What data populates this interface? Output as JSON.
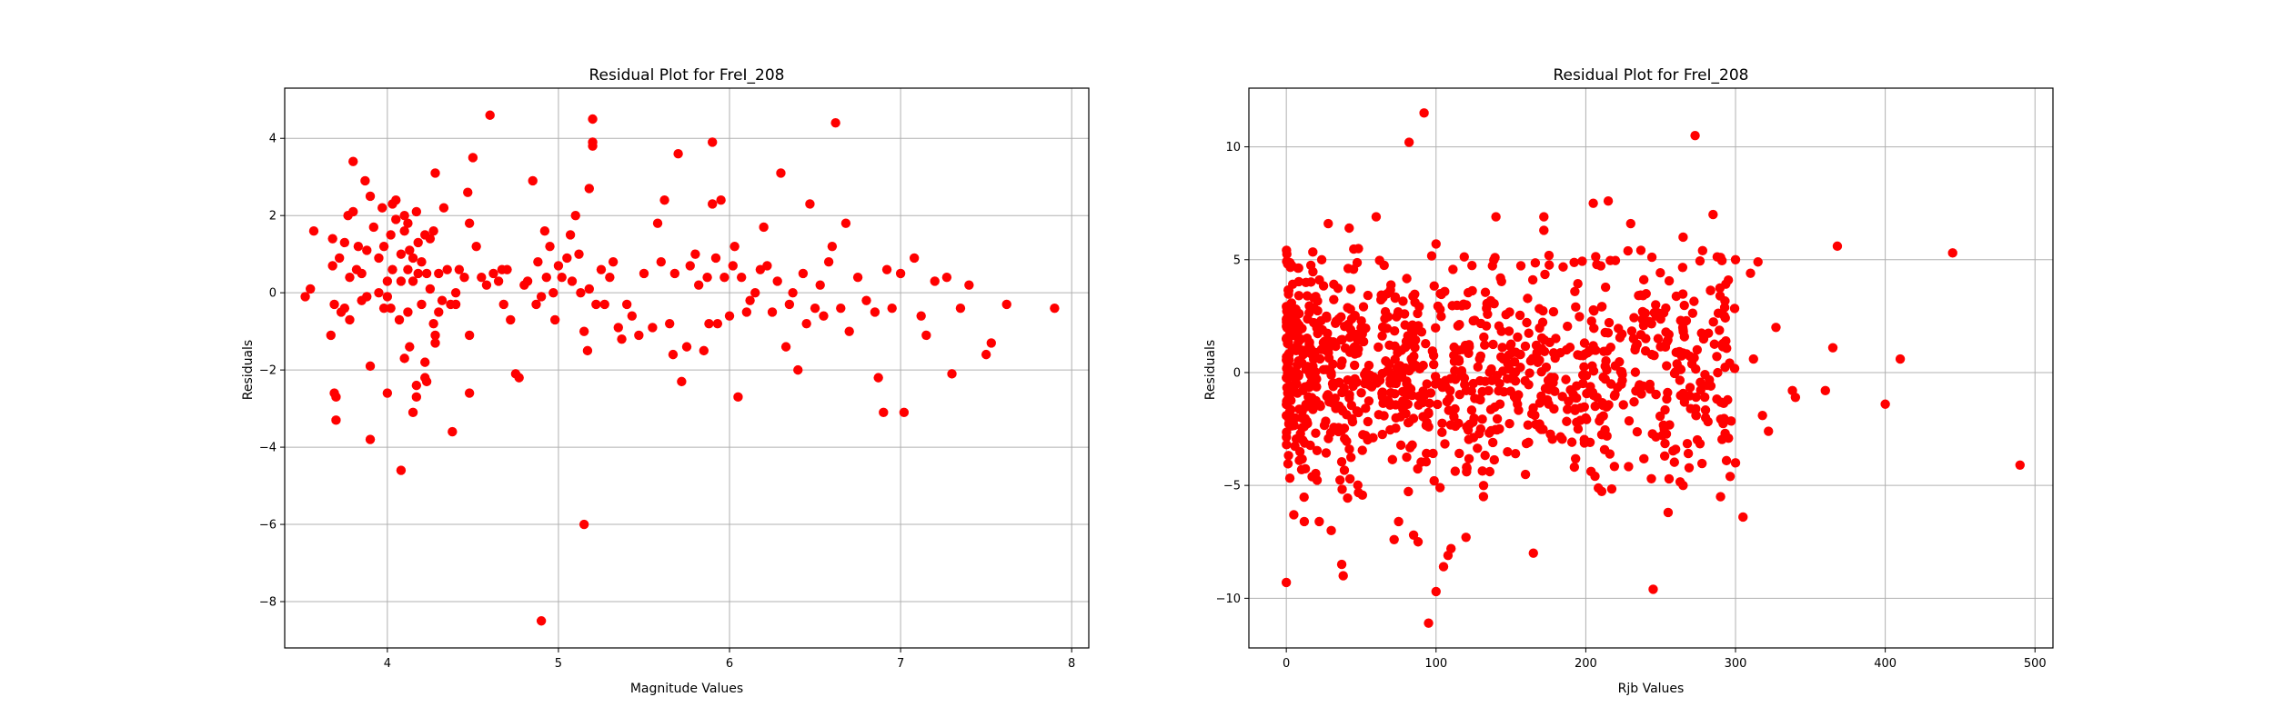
{
  "chart_data": [
    {
      "type": "scatter",
      "title": "Residual Plot for FreI_208",
      "xlabel": "Magnitude Values",
      "ylabel": "Residuals",
      "xlim": [
        3.4,
        8.1
      ],
      "ylim": [
        -9.2,
        5.3
      ],
      "xticks": [
        4,
        5,
        6,
        7,
        8
      ],
      "yticks": [
        -8,
        -6,
        -4,
        -2,
        0,
        2,
        4
      ],
      "grid": true,
      "color": "#ff0000",
      "points": [
        [
          3.52,
          -0.1
        ],
        [
          3.57,
          1.6
        ],
        [
          3.55,
          0.1
        ],
        [
          3.67,
          -1.1
        ],
        [
          3.68,
          0.7
        ],
        [
          3.68,
          1.4
        ],
        [
          3.69,
          -0.3
        ],
        [
          3.69,
          -2.6
        ],
        [
          3.7,
          -3.3
        ],
        [
          3.7,
          -2.7
        ],
        [
          3.72,
          0.9
        ],
        [
          3.73,
          -0.5
        ],
        [
          3.75,
          -0.4
        ],
        [
          3.75,
          1.3
        ],
        [
          3.77,
          2.0
        ],
        [
          3.78,
          0.4
        ],
        [
          3.78,
          -0.7
        ],
        [
          3.8,
          3.4
        ],
        [
          3.8,
          2.1
        ],
        [
          3.82,
          0.6
        ],
        [
          3.83,
          1.2
        ],
        [
          3.85,
          -0.2
        ],
        [
          3.85,
          0.5
        ],
        [
          3.87,
          2.9
        ],
        [
          3.88,
          1.1
        ],
        [
          3.88,
          -0.1
        ],
        [
          3.9,
          -1.9
        ],
        [
          3.9,
          -3.8
        ],
        [
          3.9,
          2.5
        ],
        [
          3.92,
          1.7
        ],
        [
          3.95,
          0.0
        ],
        [
          3.95,
          0.9
        ],
        [
          3.97,
          2.2
        ],
        [
          3.98,
          -0.4
        ],
        [
          3.98,
          1.2
        ],
        [
          4.0,
          -2.6
        ],
        [
          4.0,
          -0.1
        ],
        [
          4.0,
          0.3
        ],
        [
          4.02,
          1.5
        ],
        [
          4.02,
          -0.4
        ],
        [
          4.03,
          0.6
        ],
        [
          4.03,
          2.3
        ],
        [
          4.05,
          1.9
        ],
        [
          4.05,
          2.4
        ],
        [
          4.07,
          -0.7
        ],
        [
          4.08,
          -4.6
        ],
        [
          4.08,
          0.3
        ],
        [
          4.08,
          1.0
        ],
        [
          4.1,
          2.0
        ],
        [
          4.1,
          1.6
        ],
        [
          4.1,
          -1.7
        ],
        [
          4.12,
          -0.5
        ],
        [
          4.12,
          0.6
        ],
        [
          4.12,
          1.8
        ],
        [
          4.13,
          -1.4
        ],
        [
          4.13,
          1.1
        ],
        [
          4.15,
          0.3
        ],
        [
          4.15,
          -3.1
        ],
        [
          4.15,
          0.9
        ],
        [
          4.17,
          2.1
        ],
        [
          4.17,
          -2.4
        ],
        [
          4.17,
          -2.7
        ],
        [
          4.18,
          0.5
        ],
        [
          4.18,
          1.3
        ],
        [
          4.2,
          -0.3
        ],
        [
          4.2,
          0.8
        ],
        [
          4.22,
          -2.2
        ],
        [
          4.22,
          1.5
        ],
        [
          4.22,
          -1.8
        ],
        [
          4.23,
          -2.3
        ],
        [
          4.23,
          0.5
        ],
        [
          4.25,
          0.1
        ],
        [
          4.25,
          1.4
        ],
        [
          4.27,
          1.6
        ],
        [
          4.27,
          -0.8
        ],
        [
          4.28,
          3.1
        ],
        [
          4.28,
          -1.1
        ],
        [
          4.28,
          -1.3
        ],
        [
          4.3,
          0.5
        ],
        [
          4.3,
          -0.5
        ],
        [
          4.32,
          -0.2
        ],
        [
          4.33,
          2.2
        ],
        [
          4.35,
          0.6
        ],
        [
          4.37,
          -0.3
        ],
        [
          4.38,
          -3.6
        ],
        [
          4.4,
          0.0
        ],
        [
          4.4,
          -0.3
        ],
        [
          4.42,
          0.6
        ],
        [
          4.45,
          0.4
        ],
        [
          4.47,
          2.6
        ],
        [
          4.48,
          1.8
        ],
        [
          4.48,
          -1.1
        ],
        [
          4.48,
          -2.6
        ],
        [
          4.5,
          3.5
        ],
        [
          4.52,
          1.2
        ],
        [
          4.55,
          0.4
        ],
        [
          4.58,
          0.2
        ],
        [
          4.6,
          4.6
        ],
        [
          4.62,
          0.5
        ],
        [
          4.65,
          0.3
        ],
        [
          4.67,
          0.6
        ],
        [
          4.68,
          -0.3
        ],
        [
          4.7,
          0.6
        ],
        [
          4.72,
          -0.7
        ],
        [
          4.75,
          -2.1
        ],
        [
          4.77,
          -2.2
        ],
        [
          4.8,
          0.2
        ],
        [
          4.82,
          0.3
        ],
        [
          4.85,
          2.9
        ],
        [
          4.87,
          -0.3
        ],
        [
          4.88,
          0.8
        ],
        [
          4.9,
          -0.1
        ],
        [
          4.9,
          -8.5
        ],
        [
          4.92,
          1.6
        ],
        [
          4.93,
          0.4
        ],
        [
          4.95,
          1.2
        ],
        [
          4.97,
          0.0
        ],
        [
          4.98,
          -0.7
        ],
        [
          5.0,
          0.7
        ],
        [
          5.02,
          0.4
        ],
        [
          5.05,
          0.9
        ],
        [
          5.07,
          1.5
        ],
        [
          5.08,
          0.3
        ],
        [
          5.1,
          2.0
        ],
        [
          5.12,
          1.0
        ],
        [
          5.13,
          0.0
        ],
        [
          5.15,
          -6.0
        ],
        [
          5.15,
          -1.0
        ],
        [
          5.17,
          -1.5
        ],
        [
          5.18,
          0.1
        ],
        [
          5.18,
          2.7
        ],
        [
          5.2,
          3.9
        ],
        [
          5.2,
          3.8
        ],
        [
          5.2,
          4.5
        ],
        [
          5.22,
          -0.3
        ],
        [
          5.25,
          0.6
        ],
        [
          5.27,
          -0.3
        ],
        [
          5.3,
          0.4
        ],
        [
          5.32,
          0.8
        ],
        [
          5.35,
          -0.9
        ],
        [
          5.37,
          -1.2
        ],
        [
          5.4,
          -0.3
        ],
        [
          5.43,
          -0.6
        ],
        [
          5.47,
          -1.1
        ],
        [
          5.5,
          0.5
        ],
        [
          5.55,
          -0.9
        ],
        [
          5.58,
          1.8
        ],
        [
          5.6,
          0.8
        ],
        [
          5.62,
          2.4
        ],
        [
          5.65,
          -0.8
        ],
        [
          5.67,
          -1.6
        ],
        [
          5.68,
          0.5
        ],
        [
          5.7,
          3.6
        ],
        [
          5.72,
          -2.3
        ],
        [
          5.75,
          -1.4
        ],
        [
          5.77,
          0.7
        ],
        [
          5.8,
          1.0
        ],
        [
          5.82,
          0.2
        ],
        [
          5.85,
          -1.5
        ],
        [
          5.87,
          0.4
        ],
        [
          5.88,
          -0.8
        ],
        [
          5.9,
          2.3
        ],
        [
          5.9,
          3.9
        ],
        [
          5.92,
          0.9
        ],
        [
          5.93,
          -0.8
        ],
        [
          5.95,
          2.4
        ],
        [
          5.97,
          0.4
        ],
        [
          6.0,
          -0.6
        ],
        [
          6.02,
          0.7
        ],
        [
          6.03,
          1.2
        ],
        [
          6.05,
          -2.7
        ],
        [
          6.07,
          0.4
        ],
        [
          6.1,
          -0.5
        ],
        [
          6.12,
          -0.2
        ],
        [
          6.15,
          0.0
        ],
        [
          6.18,
          0.6
        ],
        [
          6.2,
          1.7
        ],
        [
          6.22,
          0.7
        ],
        [
          6.25,
          -0.5
        ],
        [
          6.28,
          0.3
        ],
        [
          6.3,
          3.1
        ],
        [
          6.33,
          -1.4
        ],
        [
          6.35,
          -0.3
        ],
        [
          6.37,
          0.0
        ],
        [
          6.4,
          -2.0
        ],
        [
          6.43,
          0.5
        ],
        [
          6.45,
          -0.8
        ],
        [
          6.47,
          2.3
        ],
        [
          6.5,
          -0.4
        ],
        [
          6.53,
          0.2
        ],
        [
          6.55,
          -0.6
        ],
        [
          6.58,
          0.8
        ],
        [
          6.6,
          1.2
        ],
        [
          6.62,
          4.4
        ],
        [
          6.65,
          -0.4
        ],
        [
          6.68,
          1.8
        ],
        [
          6.7,
          -1.0
        ],
        [
          6.75,
          0.4
        ],
        [
          6.8,
          -0.2
        ],
        [
          6.85,
          -0.5
        ],
        [
          6.87,
          -2.2
        ],
        [
          6.9,
          -3.1
        ],
        [
          6.92,
          0.6
        ],
        [
          6.95,
          -0.4
        ],
        [
          7.0,
          0.5
        ],
        [
          7.02,
          -3.1
        ],
        [
          7.08,
          0.9
        ],
        [
          7.12,
          -0.6
        ],
        [
          7.15,
          -1.1
        ],
        [
          7.2,
          0.3
        ],
        [
          7.27,
          0.4
        ],
        [
          7.3,
          -2.1
        ],
        [
          7.35,
          -0.4
        ],
        [
          7.4,
          0.2
        ],
        [
          7.5,
          -1.6
        ],
        [
          7.53,
          -1.3
        ],
        [
          7.62,
          -0.3
        ],
        [
          7.9,
          -0.4
        ]
      ]
    },
    {
      "type": "scatter",
      "title": "Residual Plot for FreI_208",
      "xlabel": "Rjb Values",
      "ylabel": "Residuals",
      "xlim": [
        -25,
        512
      ],
      "ylim": [
        -12.2,
        12.6
      ],
      "xticks": [
        0,
        100,
        200,
        300,
        400,
        500
      ],
      "yticks": [
        -10,
        -5,
        0,
        5,
        10
      ],
      "grid": true,
      "color": "#ff0000",
      "n_random_cluster": 1000,
      "points": [
        [
          0,
          -9.3
        ],
        [
          5,
          -6.3
        ],
        [
          12,
          -6.6
        ],
        [
          22,
          -6.6
        ],
        [
          30,
          -7.0
        ],
        [
          37,
          -8.5
        ],
        [
          38,
          -9.0
        ],
        [
          28,
          6.6
        ],
        [
          42,
          6.4
        ],
        [
          60,
          6.9
        ],
        [
          72,
          -7.4
        ],
        [
          75,
          -6.6
        ],
        [
          85,
          -7.2
        ],
        [
          88,
          -7.5
        ],
        [
          95,
          -11.1
        ],
        [
          100,
          -9.7
        ],
        [
          105,
          -8.6
        ],
        [
          108,
          -8.1
        ],
        [
          110,
          -7.8
        ],
        [
          120,
          -7.3
        ],
        [
          82,
          10.2
        ],
        [
          92,
          11.5
        ],
        [
          100,
          5.7
        ],
        [
          140,
          6.9
        ],
        [
          165,
          -8.0
        ],
        [
          172,
          6.9
        ],
        [
          172,
          6.3
        ],
        [
          205,
          7.5
        ],
        [
          215,
          7.6
        ],
        [
          230,
          6.6
        ],
        [
          245,
          -9.6
        ],
        [
          265,
          6.0
        ],
        [
          273,
          10.5
        ],
        [
          278,
          5.4
        ],
        [
          285,
          7.0
        ],
        [
          290,
          5.1
        ],
        [
          300,
          5.0
        ],
        [
          310,
          4.4
        ],
        [
          315,
          4.9
        ],
        [
          305,
          -6.4
        ],
        [
          300,
          -4.0
        ],
        [
          312,
          0.6
        ],
        [
          318,
          -1.9
        ],
        [
          322,
          -2.6
        ],
        [
          327,
          2.0
        ],
        [
          338,
          -0.8
        ],
        [
          340,
          -1.1
        ],
        [
          360,
          -0.8
        ],
        [
          365,
          1.1
        ],
        [
          368,
          5.6
        ],
        [
          400,
          -1.4
        ],
        [
          410,
          0.6
        ],
        [
          445,
          5.3
        ],
        [
          490,
          -4.1
        ],
        [
          280,
          -2.0
        ],
        [
          270,
          -1.6
        ],
        [
          260,
          -3.4
        ],
        [
          290,
          -5.5
        ],
        [
          255,
          -6.2
        ],
        [
          265,
          -5.0
        ]
      ]
    }
  ]
}
